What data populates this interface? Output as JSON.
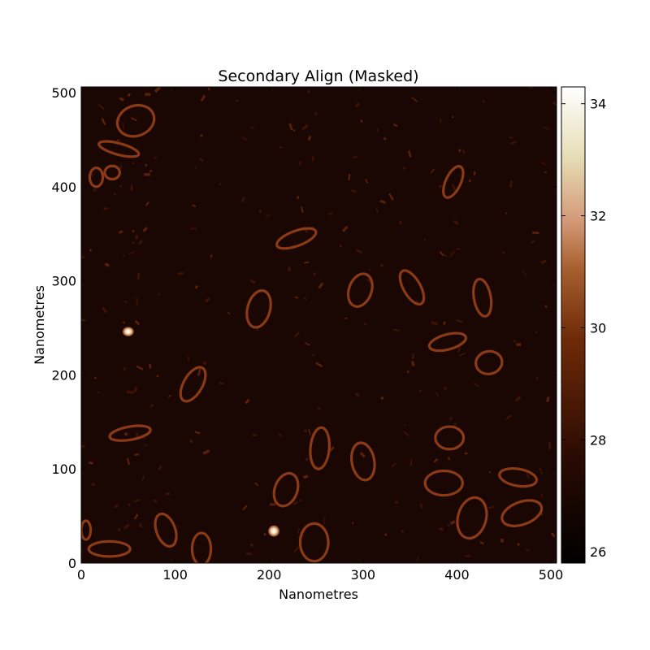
{
  "chart_data": {
    "type": "heatmap",
    "title": "Secondary Align (Masked)",
    "xlabel": "Nanometres",
    "ylabel": "Nanometres",
    "xlim": [
      0,
      506
    ],
    "ylim": [
      0,
      506
    ],
    "x_ticks": [
      0,
      100,
      200,
      300,
      400,
      500
    ],
    "y_ticks": [
      0,
      100,
      200,
      300,
      400,
      500
    ],
    "colorbar": {
      "range": [
        25.8,
        34.3
      ],
      "ticks": [
        26,
        28,
        30,
        32,
        34
      ],
      "colormap": [
        "#000000",
        "#2a0a02",
        "#6e2a08",
        "#a86030",
        "#d49a78",
        "#e6dcb4",
        "#ffffff"
      ]
    },
    "background_color": "#1a0704",
    "molecule_color": "#8a3a14",
    "grid": false,
    "features": [
      {
        "shape": "loop",
        "x": 58,
        "y": 470,
        "rx": 20,
        "ry": 16,
        "angle": -20
      },
      {
        "shape": "loop",
        "x": 40,
        "y": 440,
        "rx": 22,
        "ry": 6,
        "angle": 15
      },
      {
        "shape": "loop",
        "x": 16,
        "y": 410,
        "rx": 7,
        "ry": 10,
        "angle": 0
      },
      {
        "shape": "loop",
        "x": 33,
        "y": 415,
        "rx": 8,
        "ry": 7,
        "angle": 0
      },
      {
        "shape": "loop",
        "x": 396,
        "y": 405,
        "rx": 8,
        "ry": 18,
        "angle": 25
      },
      {
        "shape": "loop",
        "x": 229,
        "y": 345,
        "rx": 22,
        "ry": 8,
        "angle": -20
      },
      {
        "shape": "loop",
        "x": 297,
        "y": 290,
        "rx": 12,
        "ry": 18,
        "angle": 20
      },
      {
        "shape": "loop",
        "x": 352,
        "y": 293,
        "rx": 9,
        "ry": 20,
        "angle": -30
      },
      {
        "shape": "loop",
        "x": 427,
        "y": 282,
        "rx": 9,
        "ry": 20,
        "angle": -10
      },
      {
        "shape": "loop",
        "x": 189,
        "y": 270,
        "rx": 12,
        "ry": 20,
        "angle": 15
      },
      {
        "shape": "loop",
        "x": 50,
        "y": 246,
        "rx": 6,
        "ry": 5,
        "angle": 0,
        "bright": true
      },
      {
        "shape": "loop",
        "x": 390,
        "y": 235,
        "rx": 20,
        "ry": 8,
        "angle": -15
      },
      {
        "shape": "loop",
        "x": 434,
        "y": 213,
        "rx": 14,
        "ry": 12,
        "angle": -10
      },
      {
        "shape": "loop",
        "x": 119,
        "y": 190,
        "rx": 10,
        "ry": 20,
        "angle": 30
      },
      {
        "shape": "loop",
        "x": 52,
        "y": 138,
        "rx": 22,
        "ry": 7,
        "angle": -10
      },
      {
        "shape": "loop",
        "x": 254,
        "y": 122,
        "rx": 10,
        "ry": 22,
        "angle": 5
      },
      {
        "shape": "loop",
        "x": 300,
        "y": 108,
        "rx": 12,
        "ry": 20,
        "angle": -10
      },
      {
        "shape": "loop",
        "x": 392,
        "y": 133,
        "rx": 15,
        "ry": 12,
        "angle": 0
      },
      {
        "shape": "loop",
        "x": 386,
        "y": 85,
        "rx": 20,
        "ry": 13,
        "angle": 0
      },
      {
        "shape": "loop",
        "x": 218,
        "y": 78,
        "rx": 12,
        "ry": 18,
        "angle": 20
      },
      {
        "shape": "loop",
        "x": 465,
        "y": 91,
        "rx": 20,
        "ry": 9,
        "angle": 10
      },
      {
        "shape": "loop",
        "x": 416,
        "y": 48,
        "rx": 15,
        "ry": 22,
        "angle": 15
      },
      {
        "shape": "loop",
        "x": 469,
        "y": 53,
        "rx": 22,
        "ry": 12,
        "angle": -20
      },
      {
        "shape": "loop",
        "x": 90,
        "y": 35,
        "rx": 10,
        "ry": 18,
        "angle": -20
      },
      {
        "shape": "loop",
        "x": 30,
        "y": 15,
        "rx": 22,
        "ry": 8,
        "angle": 0
      },
      {
        "shape": "loop",
        "x": 128,
        "y": 15,
        "rx": 10,
        "ry": 17,
        "angle": 0
      },
      {
        "shape": "loop",
        "x": 248,
        "y": 22,
        "rx": 15,
        "ry": 20,
        "angle": 0
      },
      {
        "shape": "loop",
        "x": 205,
        "y": 34,
        "rx": 6,
        "ry": 6,
        "angle": 0,
        "bright": true
      },
      {
        "shape": "loop",
        "x": 5,
        "y": 35,
        "rx": 5,
        "ry": 10,
        "angle": 0
      }
    ]
  }
}
